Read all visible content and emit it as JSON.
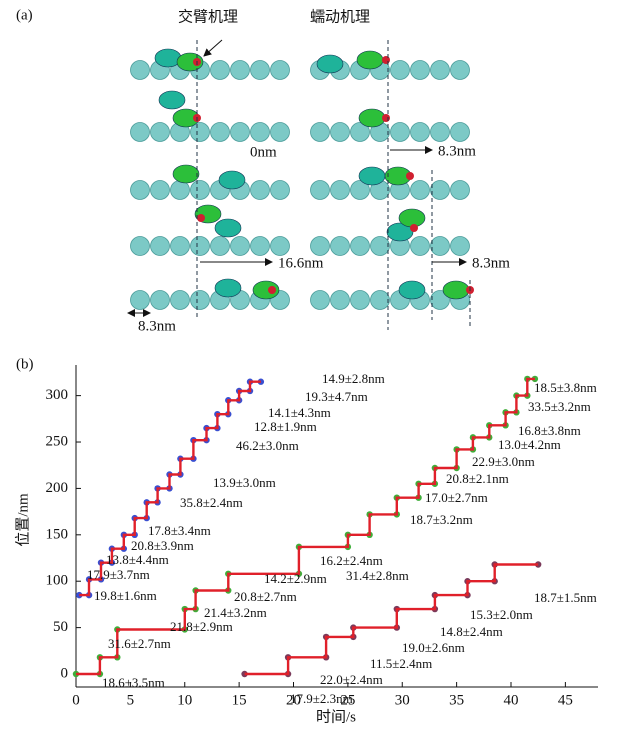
{
  "panel_a": {
    "label": "(a)",
    "title_left": "交臂机理",
    "title_right": "蠕动机理",
    "labels": [
      "0nm",
      "8.3nm",
      "16.6nm",
      "8.3nm",
      "8.3nm"
    ]
  },
  "chart_data": {
    "type": "line",
    "panel_label": "(b)",
    "x_label": "时间/s",
    "y_label": "位置/nm",
    "xlim": [
      0,
      48
    ],
    "xticks": [
      0,
      5,
      10,
      15,
      20,
      25,
      30,
      35,
      40,
      45
    ],
    "ylim": [
      -14,
      333
    ],
    "yticks": [
      0,
      50,
      100,
      150,
      200,
      250,
      300
    ],
    "fit_color": "#e0202a",
    "series": [
      {
        "color": "#3a4fd0",
        "x": [
          0.3,
          1.2,
          1.2,
          2.3,
          2.3,
          3.3,
          3.3,
          4.4,
          4.4,
          5.4,
          5.4,
          6.5,
          6.5,
          7.5,
          7.5,
          8.6,
          8.6,
          9.6,
          9.6,
          10.8,
          10.8,
          12,
          12,
          13,
          13,
          14,
          14,
          15,
          15,
          16,
          16,
          17
        ],
        "values": [
          85,
          85,
          102,
          102,
          120,
          120,
          135,
          135,
          150,
          150,
          168,
          168,
          185,
          185,
          200,
          200,
          215,
          215,
          232,
          232,
          252,
          252,
          265,
          265,
          280,
          280,
          295,
          295,
          305,
          305,
          315,
          315
        ]
      },
      {
        "color": "#3fae3a",
        "x": [
          0,
          2.2,
          2.2,
          3.8,
          3.8,
          10,
          10,
          11,
          11,
          14,
          14,
          20.5,
          20.5,
          25,
          25,
          27,
          27,
          29.5,
          29.5,
          31.5,
          31.5,
          33,
          33,
          35,
          35,
          36.5,
          36.5,
          38,
          38,
          39.5,
          39.5,
          40.5,
          40.5,
          41.5,
          41.5,
          42.2
        ],
        "values": [
          0,
          0,
          18,
          18,
          48,
          48,
          70,
          70,
          90,
          90,
          108,
          108,
          137,
          137,
          150,
          150,
          172,
          172,
          190,
          190,
          205,
          205,
          222,
          222,
          242,
          242,
          255,
          255,
          268,
          268,
          282,
          282,
          300,
          300,
          318,
          318
        ]
      },
      {
        "color": "#7a3a5a",
        "x": [
          15.5,
          19.5,
          19.5,
          23,
          23,
          25.5,
          25.5,
          29.5,
          29.5,
          33,
          33,
          36,
          36,
          38.5,
          38.5,
          42.5
        ],
        "values": [
          0,
          0,
          18,
          18,
          40,
          40,
          50,
          50,
          70,
          70,
          85,
          85,
          100,
          100,
          118,
          118
        ]
      }
    ],
    "annotations": [
      "14.9±2.8nm",
      "19.3±4.7nm",
      "14.1±4.3nm",
      "12.8±1.9nm",
      "46.2±3.0nm",
      "13.9±3.0nm",
      "35.8±2.4nm",
      "17.8±3.4nm",
      "20.8±3.9nm",
      "13.8±4.4nm",
      "17.9±3.7nm",
      "19.8±1.6nm",
      "14.2±2.9nm",
      "16.2±2.4nm",
      "31.4±2.8nm",
      "18.7±3.2nm",
      "17.0±2.7nm",
      "20.8±2.1nm",
      "22.9±3.0nm",
      "13.0±4.2nm",
      "16.8±3.8nm",
      "33.5±3.2nm",
      "18.5±3.8nm",
      "20.8±2.7nm",
      "21.4±3.2nm",
      "21.8±2.9nm",
      "31.6±2.7nm",
      "18.6±3.5nm",
      "17.9±2.3nm",
      "22.0±2.4nm",
      "11.5±2.4nm",
      "19.0±2.6nm",
      "14.8±2.4nm",
      "15.3±2.0nm",
      "18.7±1.5nm"
    ]
  }
}
